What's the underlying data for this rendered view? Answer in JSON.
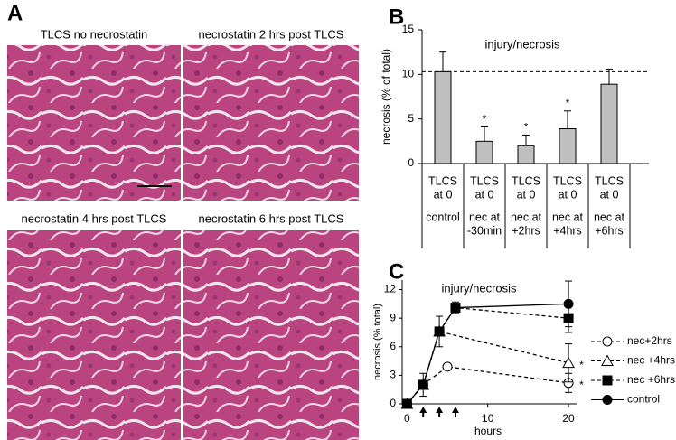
{
  "panel_a": {
    "label": "A",
    "images": [
      {
        "caption": "TLCS no necrostatin"
      },
      {
        "caption": "necrostatin 2 hrs post TLCS"
      },
      {
        "caption": "necrostatin 4 hrs post TLCS"
      },
      {
        "caption": "necrostatin 6 hrs post TLCS"
      }
    ]
  },
  "chart_data": [
    {
      "type": "bar",
      "panel_label": "B",
      "title": "injury/necrosis",
      "y_label": "necrosis (% of total)",
      "categories": [
        [
          "TLCS",
          "at 0",
          "control"
        ],
        [
          "TLCS",
          "at 0",
          "nec at",
          "-30min"
        ],
        [
          "TLCS",
          "at 0",
          "nec at",
          "+2hrs"
        ],
        [
          "TLCS",
          "at 0",
          "nec at",
          "+4hrs"
        ],
        [
          "TLCS",
          "at 0",
          "nec at",
          "+6hrs"
        ]
      ],
      "values": [
        10.3,
        2.5,
        2.0,
        3.9,
        8.9
      ],
      "errors": [
        2.2,
        1.6,
        1.2,
        2.0,
        1.7
      ],
      "marker_labels": [
        null,
        "*",
        "*",
        "*",
        null
      ],
      "reference_line": 10.3,
      "color": "#c0c0c0",
      "ylim": [
        0,
        15
      ],
      "yticks": [
        0,
        5,
        10,
        15
      ]
    },
    {
      "type": "line",
      "panel_label": "C",
      "title": "injury/necrosis",
      "x_label": "hours",
      "y_label": "necrosis (% total)",
      "series": [
        {
          "name": "nec+2hrs",
          "marker": "circle-open",
          "dashed": true,
          "x": [
            0,
            2,
            5,
            20
          ],
          "values": [
            0,
            2.0,
            3.9,
            2.2
          ],
          "errors": [
            null,
            null,
            null,
            1.0
          ],
          "marker_labels": [
            null,
            null,
            null,
            "*"
          ]
        },
        {
          "name": "nec +4hrs",
          "marker": "triangle-open",
          "dashed": true,
          "x": [
            0,
            2,
            4,
            20
          ],
          "values": [
            0,
            2.0,
            7.6,
            4.3
          ],
          "errors": [
            null,
            null,
            null,
            2.0
          ],
          "marker_labels": [
            null,
            null,
            null,
            "*"
          ]
        },
        {
          "name": "nec +6hrs",
          "marker": "square",
          "dashed": true,
          "x": [
            0,
            2,
            4,
            6,
            20
          ],
          "values": [
            0,
            2.0,
            7.6,
            10.1,
            9.0
          ],
          "errors": [
            null,
            null,
            null,
            null,
            1.5
          ]
        },
        {
          "name": "control",
          "marker": "circle",
          "dashed": false,
          "x": [
            0,
            2,
            4,
            6,
            20
          ],
          "values": [
            0,
            2.0,
            7.6,
            10.1,
            10.5
          ],
          "errors": [
            null,
            1.2,
            1.6,
            0.6,
            2.4
          ]
        }
      ],
      "arrows_at": [
        2,
        4,
        6
      ],
      "xlim": [
        -0.6,
        21
      ],
      "xticks": [
        0,
        10,
        20
      ],
      "ylim": [
        0,
        13
      ],
      "yticks": [
        0,
        3,
        6,
        9,
        12
      ]
    }
  ]
}
